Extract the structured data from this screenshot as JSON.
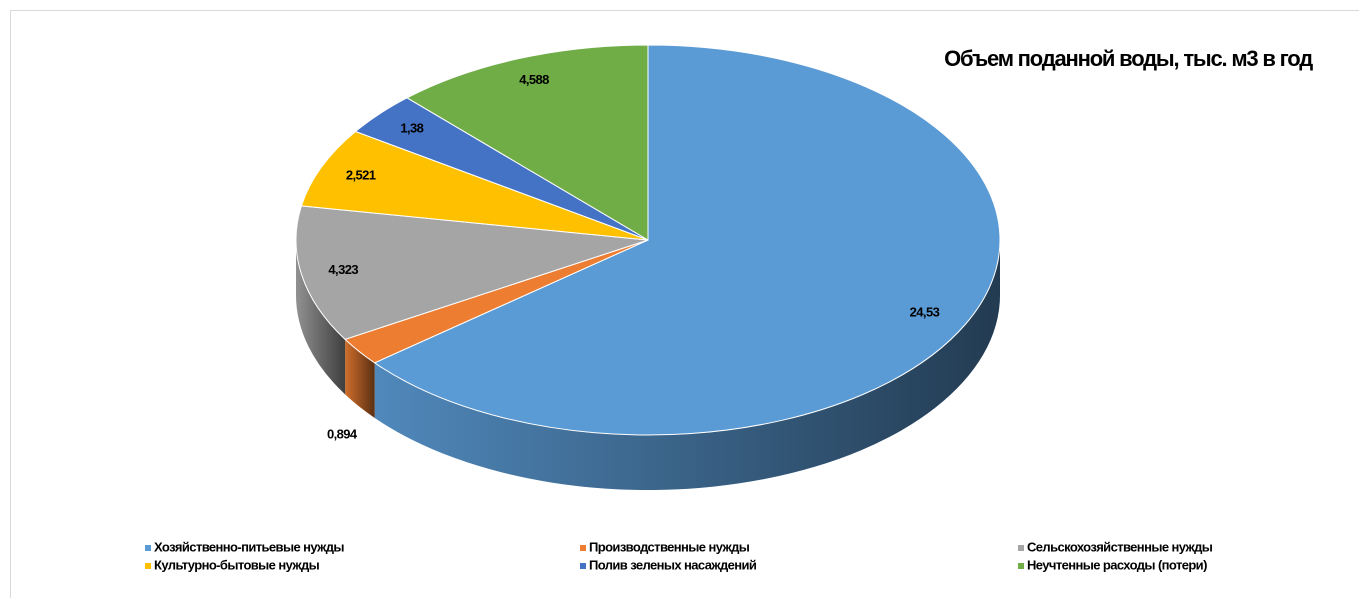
{
  "chart_data": {
    "type": "pie",
    "title": "Объем поданной воды, тыс. м3 в год",
    "categories": [
      "Хозяйственно-питьевые нужды",
      "Производственные нужды",
      "Сельскохозяйственные нужды",
      "Культурно-бытовые нужды",
      "Полив зеленых насаждений",
      "Неучтенные расходы (потери)"
    ],
    "values": [
      24.53,
      0.894,
      4.323,
      2.521,
      1.38,
      4.588
    ],
    "value_labels": [
      "24,53",
      "0,894",
      "4,323",
      "2,521",
      "1,38",
      "4,588"
    ],
    "colors": [
      "#5b9bd5",
      "#ed7d31",
      "#a5a5a5",
      "#ffc000",
      "#4472c4",
      "#70ad47"
    ],
    "legend": "bottom"
  }
}
